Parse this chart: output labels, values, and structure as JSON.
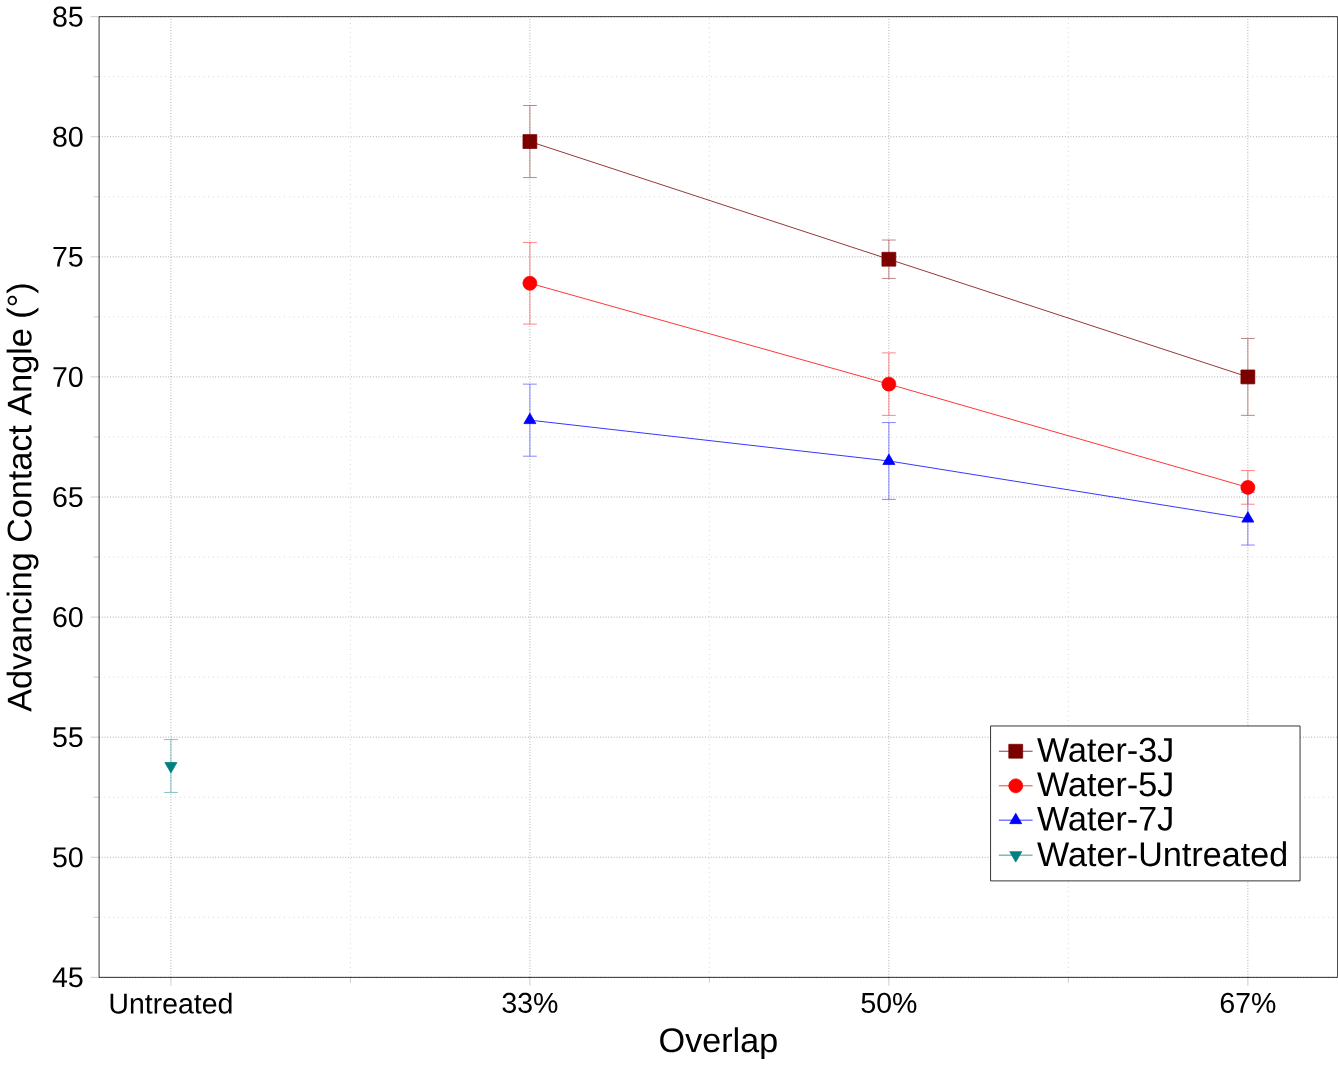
{
  "chart_data": {
    "type": "line",
    "xlabel": "Overlap",
    "ylabel": "Advancing Contact Angle (°)",
    "categories": [
      "Untreated",
      "33%",
      "50%",
      "67%"
    ],
    "ylim": [
      45,
      85
    ],
    "yticks": [
      45,
      50,
      55,
      60,
      65,
      70,
      75,
      80,
      85
    ],
    "grid": true,
    "legend": "bottom right",
    "series": [
      {
        "name": "Water-3J",
        "color": "#7b0000",
        "marker": "square",
        "values": [
          null,
          79.8,
          74.9,
          70.0
        ],
        "errors": [
          null,
          1.5,
          0.8,
          1.6
        ]
      },
      {
        "name": "Water-5J",
        "color": "#ff0000",
        "marker": "circle",
        "values": [
          null,
          73.9,
          69.7,
          65.4
        ],
        "errors": [
          null,
          1.7,
          1.3,
          0.7
        ]
      },
      {
        "name": "Water-7J",
        "color": "#0000ff",
        "marker": "triangle",
        "values": [
          null,
          68.2,
          66.5,
          64.1
        ],
        "errors": [
          null,
          1.5,
          1.6,
          1.1
        ]
      },
      {
        "name": "Water-Untreated",
        "color": "#008080",
        "marker": "triangle down",
        "values": [
          53.8,
          null,
          null,
          null
        ],
        "errors": [
          1.1,
          null,
          null,
          null
        ]
      }
    ]
  }
}
